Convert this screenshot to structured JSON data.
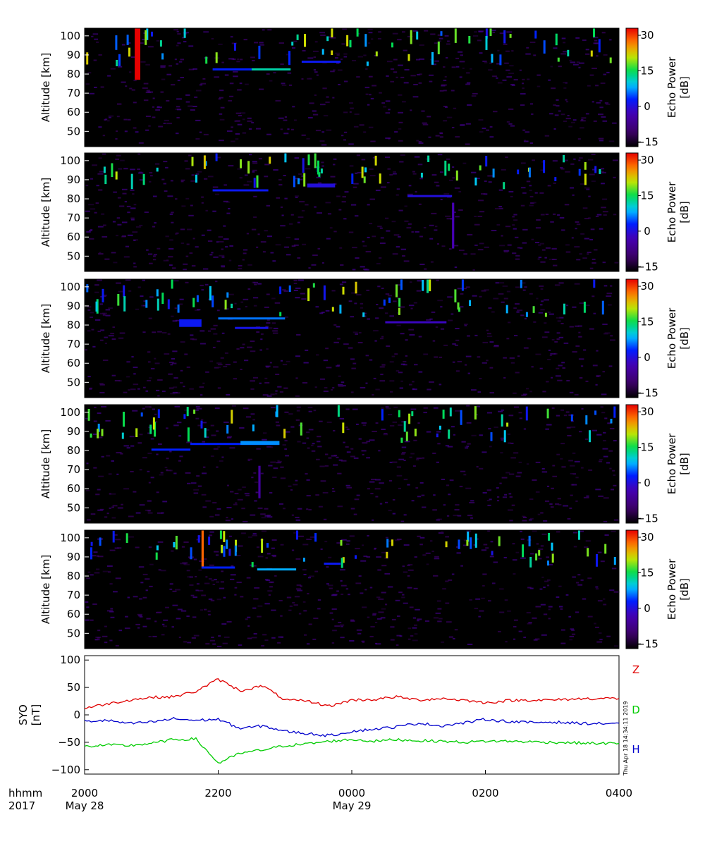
{
  "chart_data": [
    {
      "type": "heatmap",
      "panel": 1,
      "ylabel": "Altitude [km]",
      "yticks": [
        50,
        60,
        70,
        80,
        90,
        100
      ],
      "ylim": [
        42,
        104
      ],
      "x_range_hhmm": [
        "2000",
        "0400"
      ],
      "colorbar": {
        "label_line1": "Echo Power",
        "label_line2": "[dB]",
        "ticks": [
          30,
          15,
          0,
          -15
        ],
        "range": [
          -17,
          33
        ]
      },
      "features": [
        {
          "start_hhmm": "2045",
          "end_hhmm": "2050",
          "alt_min": 77,
          "alt_max": 104,
          "db": 33
        },
        {
          "start_hhmm": "2155",
          "end_hhmm": "2230",
          "alt_min": 82,
          "alt_max": 83,
          "db": 3
        },
        {
          "start_hhmm": "2230",
          "end_hhmm": "2305",
          "alt_min": 82,
          "alt_max": 83,
          "db": 12
        },
        {
          "start_hhmm": "2315",
          "end_hhmm": "2350",
          "alt_min": 86,
          "alt_max": 87,
          "db": 2
        }
      ]
    },
    {
      "type": "heatmap",
      "panel": 2,
      "ylabel": "Altitude [km]",
      "yticks": [
        50,
        60,
        70,
        80,
        90,
        100
      ],
      "ylim": [
        42,
        104
      ],
      "x_range_hhmm": [
        "2000",
        "0400"
      ],
      "colorbar": {
        "label_line1": "Echo Power",
        "label_line2": "[dB]",
        "ticks": [
          30,
          15,
          0,
          -15
        ],
        "range": [
          -17,
          33
        ]
      },
      "features": [
        {
          "start_hhmm": "2155",
          "end_hhmm": "2245",
          "alt_min": 84,
          "alt_max": 85,
          "db": 2
        },
        {
          "start_hhmm": "2320",
          "end_hhmm": "2345",
          "alt_min": 86,
          "alt_max": 88,
          "db": 0
        },
        {
          "start_hhmm": "0050",
          "end_hhmm": "0130",
          "alt_min": 81,
          "alt_max": 82,
          "db": 0
        },
        {
          "start_hhmm": "0130",
          "end_hhmm": "0132",
          "alt_min": 54,
          "alt_max": 78,
          "db": -3
        }
      ]
    },
    {
      "type": "heatmap",
      "panel": 3,
      "ylabel": "Altitude [km]",
      "yticks": [
        50,
        60,
        70,
        80,
        90,
        100
      ],
      "ylim": [
        42,
        104
      ],
      "x_range_hhmm": [
        "2000",
        "0400"
      ],
      "colorbar": {
        "label_line1": "Echo Power",
        "label_line2": "[dB]",
        "ticks": [
          30,
          15,
          0,
          -15
        ],
        "range": [
          -17,
          33
        ]
      },
      "features": [
        {
          "start_hhmm": "2125",
          "end_hhmm": "2145",
          "alt_min": 79,
          "alt_max": 83,
          "db": 2
        },
        {
          "start_hhmm": "2200",
          "end_hhmm": "2300",
          "alt_min": 83,
          "alt_max": 84,
          "db": 6
        },
        {
          "start_hhmm": "2215",
          "end_hhmm": "2245",
          "alt_min": 78,
          "alt_max": 79,
          "db": 1
        },
        {
          "start_hhmm": "0030",
          "end_hhmm": "0125",
          "alt_min": 81,
          "alt_max": 82,
          "db": -2
        }
      ]
    },
    {
      "type": "heatmap",
      "panel": 4,
      "ylabel": "Altitude [km]",
      "yticks": [
        50,
        60,
        70,
        80,
        90,
        100
      ],
      "ylim": [
        42,
        104
      ],
      "x_range_hhmm": [
        "2000",
        "0400"
      ],
      "colorbar": {
        "label_line1": "Echo Power",
        "label_line2": "[dB]",
        "ticks": [
          30,
          15,
          0,
          -15
        ],
        "range": [
          -17,
          33
        ]
      },
      "features": [
        {
          "start_hhmm": "2100",
          "end_hhmm": "2135",
          "alt_min": 80,
          "alt_max": 81,
          "db": 3
        },
        {
          "start_hhmm": "2135",
          "end_hhmm": "2255",
          "alt_min": 83,
          "alt_max": 84,
          "db": 3
        },
        {
          "start_hhmm": "2220",
          "end_hhmm": "2255",
          "alt_min": 83,
          "alt_max": 85,
          "db": 7
        },
        {
          "start_hhmm": "2236",
          "end_hhmm": "2238",
          "alt_min": 55,
          "alt_max": 72,
          "db": -5
        }
      ]
    },
    {
      "type": "heatmap",
      "panel": 5,
      "ylabel": "Altitude [km]",
      "yticks": [
        50,
        60,
        70,
        80,
        90,
        100
      ],
      "ylim": [
        42,
        104
      ],
      "x_range_hhmm": [
        "2000",
        "0400"
      ],
      "colorbar": {
        "label_line1": "Echo Power",
        "label_line2": "[dB]",
        "ticks": [
          30,
          15,
          0,
          -15
        ],
        "range": [
          -17,
          33
        ]
      },
      "features": [
        {
          "start_hhmm": "2145",
          "end_hhmm": "2147",
          "alt_min": 85,
          "alt_max": 104,
          "db": 28
        },
        {
          "start_hhmm": "2145",
          "end_hhmm": "2215",
          "alt_min": 84,
          "alt_max": 85,
          "db": 3
        },
        {
          "start_hhmm": "2235",
          "end_hhmm": "2310",
          "alt_min": 83,
          "alt_max": 84,
          "db": 8
        },
        {
          "start_hhmm": "2335",
          "end_hhmm": "2350",
          "alt_min": 86,
          "alt_max": 87,
          "db": 2
        }
      ]
    },
    {
      "type": "line",
      "panel": 6,
      "ylabel_line1": "SYO",
      "ylabel_line2": "[nT]",
      "yticks": [
        100,
        50,
        0,
        -50,
        -100
      ],
      "ylim": [
        -108,
        108
      ],
      "x_hhmm": [
        "2000",
        "2020",
        "2040",
        "2100",
        "2120",
        "2140",
        "2200",
        "2220",
        "2240",
        "2300",
        "2320",
        "2340",
        "0000",
        "0020",
        "0040",
        "0100",
        "0120",
        "0140",
        "0200",
        "0220",
        "0240",
        "0300",
        "0320",
        "0340",
        "0400"
      ],
      "series": [
        {
          "name": "Z",
          "color": "#e00000",
          "values": [
            12,
            20,
            27,
            32,
            33,
            43,
            65,
            44,
            53,
            27,
            25,
            16,
            27,
            28,
            33,
            27,
            30,
            27,
            22,
            26,
            27,
            27,
            29,
            30,
            30
          ]
        },
        {
          "name": "D",
          "color": "#00cc00",
          "values": [
            -58,
            -55,
            -56,
            -52,
            -45,
            -44,
            -88,
            -70,
            -64,
            -56,
            -53,
            -48,
            -45,
            -48,
            -45,
            -47,
            -48,
            -50,
            -48,
            -48,
            -49,
            -50,
            -51,
            -52,
            -52
          ]
        },
        {
          "name": "H",
          "color": "#0000cc",
          "values": [
            -12,
            -10,
            -16,
            -13,
            -7,
            -10,
            -8,
            -25,
            -20,
            -30,
            -34,
            -38,
            -30,
            -26,
            -22,
            -15,
            -20,
            -15,
            -8,
            -12,
            -14,
            -13,
            -15,
            -16,
            -15
          ]
        }
      ],
      "side_text": "Thu Apr 18 14:34:11 2019"
    }
  ],
  "time_axis": {
    "row1_label": "hhmm",
    "row2_label": "2017",
    "ticks": [
      {
        "hhmm": "2000",
        "date": "May 28"
      },
      {
        "hhmm": "2200",
        "date": ""
      },
      {
        "hhmm": "0000",
        "date": "May 29"
      },
      {
        "hhmm": "0200",
        "date": ""
      },
      {
        "hhmm": "0400",
        "date": ""
      }
    ]
  }
}
